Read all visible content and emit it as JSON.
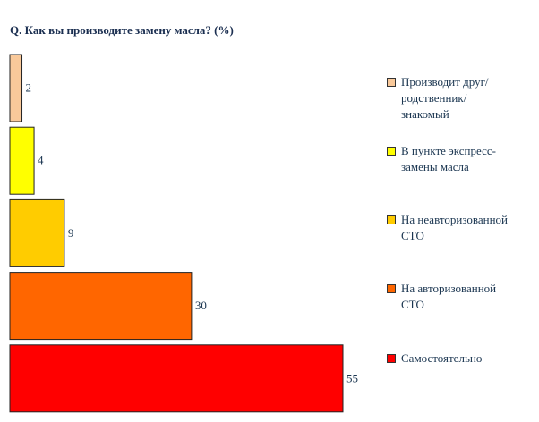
{
  "chart_data": {
    "type": "bar",
    "orientation": "horizontal",
    "title": "Q. Как вы производите замену масла? (%)",
    "categories": [
      "Производит друг/родственник/ знакомый",
      "В пункте экспресс-замены масла",
      "На неавторизованной СТО",
      "На авторизованной СТО",
      "Самостоятельно"
    ],
    "values": [
      2,
      4,
      9,
      30,
      55
    ],
    "colors": [
      "#f9c99a",
      "#ffff00",
      "#ffcc00",
      "#ff6600",
      "#ff0000"
    ]
  }
}
